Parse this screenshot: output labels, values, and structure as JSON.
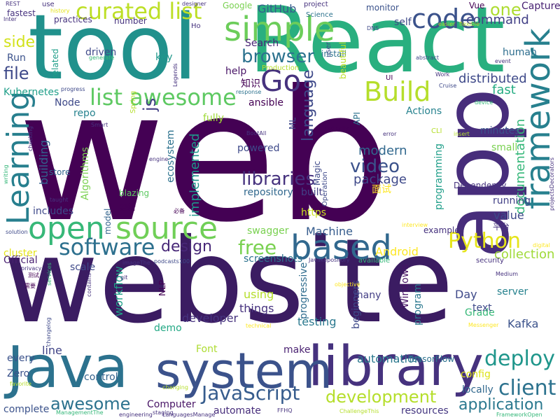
{
  "words": [
    {
      "text": "web",
      "color": "#440154"
    },
    {
      "text": "website",
      "color": "#3b1c62"
    },
    {
      "text": "tool",
      "color": "#21918c"
    },
    {
      "text": "React",
      "color": "#29af7f"
    },
    {
      "text": "app",
      "color": "#472d7b"
    },
    {
      "text": "Java",
      "color": "#2c728e"
    },
    {
      "text": "library",
      "color": "#46327e"
    },
    {
      "text": "system",
      "color": "#3b528b"
    },
    {
      "text": "open",
      "color": "#37b878"
    },
    {
      "text": "source",
      "color": "#70cf57"
    },
    {
      "text": "framework",
      "color": "#27808e"
    },
    {
      "text": "Learning",
      "color": "#277f8e"
    },
    {
      "text": "simple",
      "color": "#6ccd5a"
    },
    {
      "text": "Go",
      "color": "#46327e"
    },
    {
      "text": "code",
      "color": "#3b528b"
    },
    {
      "text": "curated list",
      "color": "#bddf26"
    },
    {
      "text": "list awesome",
      "color": "#5ec962"
    },
    {
      "text": "Build",
      "color": "#b5de2b"
    },
    {
      "text": "based",
      "color": "#31688e"
    },
    {
      "text": "software",
      "color": "#2d708e"
    },
    {
      "text": "Python",
      "color": "#e5e419"
    },
    {
      "text": "JavaScript",
      "color": "#365c8d"
    },
    {
      "text": "deploy",
      "color": "#1f968b"
    },
    {
      "text": "development",
      "color": "#b5de2b"
    },
    {
      "text": "client",
      "color": "#2c728e"
    },
    {
      "text": "awesome",
      "color": "#2c728e"
    },
    {
      "text": "browser",
      "color": "#2c728e"
    },
    {
      "text": "language",
      "color": "#3e4989"
    },
    {
      "text": "video",
      "color": "#3b528b"
    },
    {
      "text": "libraries",
      "color": "#46327e"
    },
    {
      "text": "free",
      "color": "#7ad151"
    },
    {
      "text": "design",
      "color": "#482878"
    },
    {
      "text": "application",
      "color": "#2a788e"
    },
    {
      "text": "side",
      "color": "#d2e21b"
    },
    {
      "text": "file",
      "color": "#3e4989"
    },
    {
      "text": "js",
      "color": "#423f85"
    },
    {
      "text": "one",
      "color": "#addc30"
    },
    {
      "text": "fast",
      "color": "#25ac82"
    },
    {
      "text": "distributed",
      "color": "#3e4989"
    },
    {
      "text": "documentation",
      "color": "#35b779"
    },
    {
      "text": "package",
      "color": "#3e4989"
    },
    {
      "text": "modern",
      "color": "#31688e"
    },
    {
      "text": "collection",
      "color": "#a0da39"
    },
    {
      "text": "command",
      "color": "#424086"
    },
    {
      "text": "GitHub",
      "color": "#365c8d"
    },
    {
      "text": "Search",
      "color": "#482475"
    },
    {
      "text": "help",
      "color": "#471365"
    },
    {
      "text": "human",
      "color": "#2e6e8e"
    },
    {
      "text": "Kubernetes",
      "color": "#1f9e89"
    },
    {
      "text": "Algorithms",
      "color": "#7ad151"
    },
    {
      "text": "ecosystem",
      "color": "#2c728e"
    },
    {
      "text": "building",
      "color": "#33638d"
    },
    {
      "text": "implemented",
      "color": "#1f988b"
    },
    {
      "text": "repository",
      "color": "#31688e"
    },
    {
      "text": "built",
      "color": "#424086"
    },
    {
      "text": "Machine",
      "color": "#365c8d"
    },
    {
      "text": "Android",
      "color": "#fde725"
    },
    {
      "text": "programming",
      "color": "#1f9e89"
    },
    {
      "text": "running",
      "color": "#424086"
    },
    {
      "text": "value",
      "color": "#3e4989"
    },
    {
      "text": "workflow",
      "color": "#1fa088"
    },
    {
      "text": "line",
      "color": "#414487"
    },
    {
      "text": "control",
      "color": "#33638d"
    },
    {
      "text": "Computer",
      "color": "#471365"
    },
    {
      "text": "automation",
      "color": "#2a788e"
    },
    {
      "text": "things",
      "color": "#46327e"
    },
    {
      "text": "testing",
      "color": "#2a788e"
    },
    {
      "text": "beginners",
      "color": "#3e4989"
    },
    {
      "text": "developer",
      "color": "#46327e"
    },
    {
      "text": "using",
      "color": "#b5de2b"
    },
    {
      "text": "many",
      "color": "#433e85"
    },
    {
      "text": "progressive",
      "color": "#2f6c8e"
    },
    {
      "text": "Windows",
      "color": "#471365"
    },
    {
      "text": "program",
      "color": "#2a788e"
    },
    {
      "text": "make",
      "color": "#481f70"
    },
    {
      "text": "Grade",
      "color": "#37b878"
    },
    {
      "text": "Day",
      "color": "#3e4989"
    },
    {
      "text": "text",
      "color": "#3e4989"
    },
    {
      "text": "Kafka",
      "color": "#3b528b"
    },
    {
      "text": "server",
      "color": "#26828e"
    },
    {
      "text": "config",
      "color": "#dde318"
    },
    {
      "text": "locally",
      "color": "#31688e"
    },
    {
      "text": "resources",
      "color": "#453781"
    },
    {
      "text": "automate",
      "color": "#472d7b"
    },
    {
      "text": "Font",
      "color": "#addc30"
    },
    {
      "text": "demo",
      "color": "#22a884"
    },
    {
      "text": "https",
      "color": "#cae11f"
    },
    {
      "text": "swagger",
      "color": "#7ad151"
    },
    {
      "text": "screenshots",
      "color": "#2c728e"
    },
    {
      "text": "Node",
      "color": "#3e4989"
    },
    {
      "text": "ansible",
      "color": "#440154"
    },
    {
      "text": "powered",
      "color": "#3e4989"
    },
    {
      "text": "Actions",
      "color": "#26828e"
    },
    {
      "text": "minutes",
      "color": "#3b528b"
    },
    {
      "text": "repo",
      "color": "#26828e"
    },
    {
      "text": "driven",
      "color": "#3e4989"
    },
    {
      "text": "related",
      "color": "#1f9e89"
    },
    {
      "text": "key",
      "color": "#1f988b"
    },
    {
      "text": "fully",
      "color": "#a0da39"
    },
    {
      "text": "blazing",
      "color": "#5ec962"
    },
    {
      "text": "store",
      "color": "#31688e"
    },
    {
      "text": "includes",
      "color": "#3e4989"
    },
    {
      "text": "model",
      "color": "#33638d"
    },
    {
      "text": "NLP",
      "color": "#440154"
    },
    {
      "text": "scale",
      "color": "#3e4989"
    },
    {
      "text": "cluster",
      "color": "#e5e419"
    },
    {
      "text": "Official",
      "color": "#481f70"
    },
    {
      "text": "every",
      "color": "#3b528b"
    },
    {
      "text": "Zero",
      "color": "#3b528b"
    },
    {
      "text": "complete",
      "color": "#3b528b"
    },
    {
      "text": "examples",
      "color": "#46327e"
    },
    {
      "text": "security",
      "color": "#46327e"
    },
    {
      "text": "available",
      "color": "#35b779"
    },
    {
      "text": "small",
      "color": "#7ad151"
    },
    {
      "text": "Dependency",
      "color": "#46327e"
    },
    {
      "text": "Capture",
      "color": "#482173"
    },
    {
      "text": "Vue",
      "color": "#440154"
    },
    {
      "text": "monitor",
      "color": "#3b528b"
    },
    {
      "text": "install",
      "color": "#2c728e"
    },
    {
      "text": "Production",
      "color": "#b5de2b"
    },
    {
      "text": "beautiful",
      "color": "#bddf26"
    },
    {
      "text": "number",
      "color": "#46327e"
    },
    {
      "text": "practices",
      "color": "#46327e"
    },
    {
      "text": "fastest",
      "color": "#46327e"
    },
    {
      "text": "Run",
      "color": "#3b528b"
    },
    {
      "text": "Google",
      "color": "#7ad151"
    },
    {
      "text": "project",
      "color": "#46327e"
    },
    {
      "text": "Science",
      "color": "#2c728e"
    },
    {
      "text": "user",
      "color": "#3e4989"
    },
    {
      "text": "self",
      "color": "#3e4989"
    },
    {
      "text": "designer",
      "color": "#46327e"
    },
    {
      "text": "use",
      "color": "#46327e"
    },
    {
      "text": "history",
      "color": "#e5e419"
    },
    {
      "text": "Ho",
      "color": "#46327e"
    },
    {
      "text": "知识",
      "color": "#440154"
    },
    {
      "text": "面试",
      "color": "#fde725"
    },
    {
      "text": "更新",
      "color": "#440154"
    },
    {
      "text": "平台",
      "color": "#46327e"
    },
    {
      "text": "API",
      "color": "#2c728e"
    },
    {
      "text": "UI",
      "color": "#440154"
    },
    {
      "text": "ML",
      "color": "#3e4989"
    },
    {
      "text": "Magic",
      "color": "#3e4989"
    },
    {
      "text": "Operation",
      "color": "#3e4989"
    },
    {
      "text": "Spring",
      "color": "#b5de2b"
    },
    {
      "text": "Smart",
      "color": "#46327e"
    },
    {
      "text": "Legends",
      "color": "#46327e"
    },
    {
      "text": "generate",
      "color": "#35b779"
    },
    {
      "text": "progress",
      "color": "#3e4989"
    },
    {
      "text": "response",
      "color": "#2c728e"
    },
    {
      "text": "BootAll",
      "color": "#46327e"
    },
    {
      "text": "radically",
      "color": "#440154"
    },
    {
      "text": "error",
      "color": "#46327e"
    },
    {
      "text": "insert",
      "color": "#b5de2b"
    },
    {
      "text": "device",
      "color": "#35b779"
    },
    {
      "text": "Cruise",
      "color": "#3e4989"
    },
    {
      "text": "Work",
      "color": "#46327e"
    },
    {
      "text": "abstract",
      "color": "#3e4989"
    },
    {
      "text": "flexible",
      "color": "#b5de2b"
    },
    {
      "text": "easier",
      "color": "#b5de2b"
    },
    {
      "text": "DNS",
      "color": "#3e4989"
    },
    {
      "text": "event",
      "color": "#46327e"
    },
    {
      "text": "projectsDecorators",
      "color": "#46327e"
    },
    {
      "text": "CLI",
      "color": "#b5de2b"
    },
    {
      "text": "engine",
      "color": "#46327e"
    },
    {
      "text": "checking",
      "color": "#46327e"
    },
    {
      "text": "writing",
      "color": "#35b779"
    },
    {
      "text": "taught",
      "color": "#46327e"
    },
    {
      "text": "solution",
      "color": "#3e4989"
    },
    {
      "text": "必备",
      "color": "#440154"
    },
    {
      "text": "interview",
      "color": "#fde725"
    },
    {
      "text": "Medium",
      "color": "#46327e"
    },
    {
      "text": "digital",
      "color": "#fde725"
    },
    {
      "text": "podcasts100",
      "color": "#3e4989"
    },
    {
      "text": "imageThe",
      "color": "#46327e"
    },
    {
      "text": "Javakepository",
      "color": "#46327e"
    },
    {
      "text": "privacy",
      "color": "#46327e"
    },
    {
      "text": "测试",
      "color": "#440154"
    },
    {
      "text": "services",
      "color": "#35b779"
    },
    {
      "text": "git",
      "color": "#46327e"
    },
    {
      "text": "contains",
      "color": "#46327e"
    },
    {
      "text": "需要",
      "color": "#440154"
    },
    {
      "text": "changelog",
      "color": "#3e4989"
    },
    {
      "text": "objective",
      "color": "#fde725"
    },
    {
      "text": "technical",
      "color": "#fde725"
    },
    {
      "text": "Messenger",
      "color": "#fde725"
    },
    {
      "text": "TensorFlow",
      "color": "#2c728e"
    },
    {
      "text": "changing",
      "color": "#b5de2b"
    },
    {
      "text": "staging",
      "color": "#46327e"
    },
    {
      "text": "engineering",
      "color": "#46327e"
    },
    {
      "text": "LanguagesManage",
      "color": "#46327e"
    },
    {
      "text": "FFHQ",
      "color": "#46327e"
    },
    {
      "text": "ChallengeThis",
      "color": "#b5de2b"
    },
    {
      "text": "FrameworkOpen",
      "color": "#35b779"
    },
    {
      "text": "ManagementThe",
      "color": "#35b779"
    },
    {
      "text": "favorite",
      "color": "#b5de2b"
    },
    {
      "text": "REST",
      "color": "#46327e"
    },
    {
      "text": "Inter",
      "color": "#46327e"
    }
  ]
}
